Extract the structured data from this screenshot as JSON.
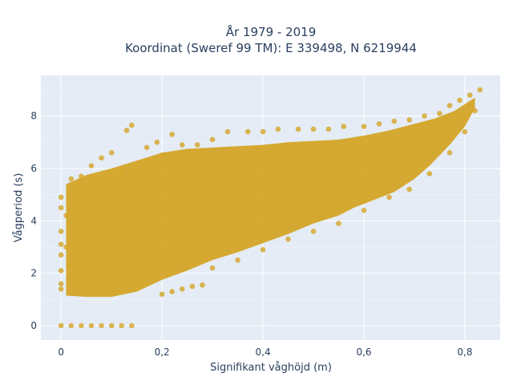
{
  "chart_data": {
    "type": "scatter",
    "title": "År 1979 - 2019",
    "subtitle": "Koordinat (Sweref 99 TM): E 339498, N 6219944",
    "xlabel": "Signifikant våghöjd (m)",
    "ylabel": "Vågperiod (s)",
    "xlim": [
      -0.04,
      0.87
    ],
    "ylim": [
      -0.55,
      9.55
    ],
    "x_ticks": [
      0,
      0.2,
      0.4,
      0.6,
      0.8
    ],
    "x_tick_labels": [
      "0",
      "0,2",
      "0,4",
      "0,6",
      "0,8"
    ],
    "y_ticks": [
      0,
      2,
      4,
      6,
      8
    ],
    "y_tick_labels": [
      "0",
      "2",
      "4",
      "6",
      "8"
    ],
    "grid": true,
    "background_color": "#e5ecf6",
    "marker_color": "#d4a526",
    "series": [
      {
        "points": [
          [
            0.0,
            0.0
          ],
          [
            0.02,
            0.0
          ],
          [
            0.04,
            0.0
          ],
          [
            0.06,
            0.0
          ],
          [
            0.08,
            0.0
          ],
          [
            0.1,
            0.0
          ],
          [
            0.12,
            0.0
          ],
          [
            0.14,
            0.0
          ],
          [
            0.0,
            4.9
          ],
          [
            0.0,
            4.5
          ],
          [
            0.0,
            3.6
          ],
          [
            0.0,
            3.1
          ],
          [
            0.0,
            2.7
          ],
          [
            0.0,
            2.1
          ],
          [
            0.0,
            1.6
          ],
          [
            0.0,
            1.4
          ],
          [
            0.01,
            4.2
          ],
          [
            0.01,
            3.0
          ],
          [
            0.015,
            2.3
          ],
          [
            0.02,
            5.6
          ],
          [
            0.04,
            5.7
          ],
          [
            0.06,
            6.1
          ],
          [
            0.08,
            6.4
          ],
          [
            0.1,
            6.6
          ],
          [
            0.12,
            5.9
          ],
          [
            0.13,
            7.45
          ],
          [
            0.14,
            7.65
          ],
          [
            0.17,
            6.8
          ],
          [
            0.19,
            7.0
          ],
          [
            0.2,
            6.5
          ],
          [
            0.22,
            7.3
          ],
          [
            0.24,
            6.9
          ],
          [
            0.27,
            6.9
          ],
          [
            0.3,
            7.1
          ],
          [
            0.33,
            7.4
          ],
          [
            0.37,
            7.4
          ],
          [
            0.4,
            7.4
          ],
          [
            0.43,
            7.5
          ],
          [
            0.47,
            7.5
          ],
          [
            0.5,
            7.5
          ],
          [
            0.53,
            7.5
          ],
          [
            0.56,
            7.6
          ],
          [
            0.6,
            7.6
          ],
          [
            0.63,
            7.7
          ],
          [
            0.66,
            7.8
          ],
          [
            0.69,
            7.85
          ],
          [
            0.72,
            8.0
          ],
          [
            0.75,
            8.1
          ],
          [
            0.77,
            8.4
          ],
          [
            0.79,
            8.6
          ],
          [
            0.81,
            8.8
          ],
          [
            0.83,
            9.0
          ],
          [
            0.2,
            1.2
          ],
          [
            0.22,
            1.3
          ],
          [
            0.24,
            1.4
          ],
          [
            0.26,
            1.5
          ],
          [
            0.28,
            1.55
          ],
          [
            0.3,
            2.2
          ],
          [
            0.35,
            2.5
          ],
          [
            0.4,
            2.9
          ],
          [
            0.45,
            3.3
          ],
          [
            0.5,
            3.6
          ],
          [
            0.55,
            3.9
          ],
          [
            0.6,
            4.4
          ],
          [
            0.6,
            4.75
          ],
          [
            0.65,
            4.9
          ],
          [
            0.69,
            5.2
          ],
          [
            0.73,
            5.8
          ],
          [
            0.77,
            6.6
          ],
          [
            0.8,
            7.4
          ],
          [
            0.82,
            8.2
          ]
        ]
      }
    ]
  }
}
